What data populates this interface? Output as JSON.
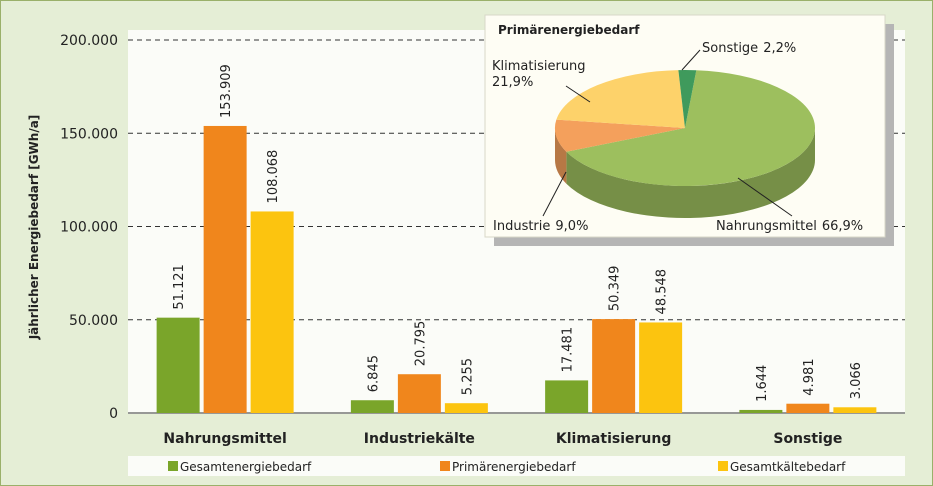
{
  "chart_data": [
    {
      "type": "bar",
      "y_label": "Jährlicher Energiebedarf [GWh/a]",
      "categories": [
        "Nahrungsmittel",
        "Industriekälte",
        "Klimatisierung",
        "Sonstige"
      ],
      "series": [
        {
          "name": "Gesamtenergiebedarf",
          "color": "#7aa52a",
          "values": [
            51121,
            6845,
            17481,
            1644
          ],
          "value_labels": [
            "51.121",
            "6.845",
            "17.481",
            "1.644"
          ]
        },
        {
          "name": "Primärenergiebedarf",
          "color": "#f0861c",
          "values": [
            153909,
            20795,
            50349,
            4981
          ],
          "value_labels": [
            "153.909",
            "20.795",
            "50.349",
            "4.981"
          ]
        },
        {
          "name": "Gesamtkältebedarf",
          "color": "#fcc40f",
          "values": [
            108068,
            5255,
            48548,
            3066
          ],
          "value_labels": [
            "108.068",
            "5.255",
            "48.548",
            "3.066"
          ]
        }
      ],
      "ylim": [
        0,
        200000
      ],
      "yticks": [
        0,
        {
          "value": 50000,
          "label": "50.000"
        },
        {
          "value": 100000,
          "label": "100.000"
        },
        {
          "value": 150000,
          "label": "150.000"
        },
        {
          "value": 200000,
          "label": "200.000"
        }
      ],
      "grid": true
    },
    {
      "type": "pie",
      "title": "Primärenergiebedarf",
      "categories": [
        "Nahrungsmittel",
        "Industrie",
        "Klimatisierung",
        "Sonstige"
      ],
      "values": [
        66.9,
        9.0,
        21.9,
        2.2
      ],
      "value_labels": [
        "66,9%",
        "9,0%",
        "21,9%",
        "2,2%"
      ],
      "colors": [
        "#9dbf5e",
        "#f4a05c",
        "#fdd26a",
        "#3f9a5c"
      ]
    }
  ]
}
